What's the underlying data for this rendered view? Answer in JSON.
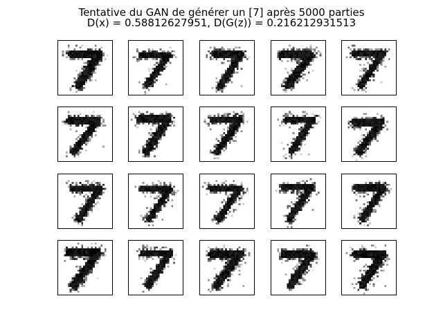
{
  "figure": {
    "title_line1": "Tentative du GAN de générer un [7] après 5000 parties",
    "title_line2": "D(x) = 0.58812627951, D(G(z)) = 0.216212931513"
  },
  "samples": {
    "rows": 4,
    "cols": 5,
    "digit": "7"
  }
}
